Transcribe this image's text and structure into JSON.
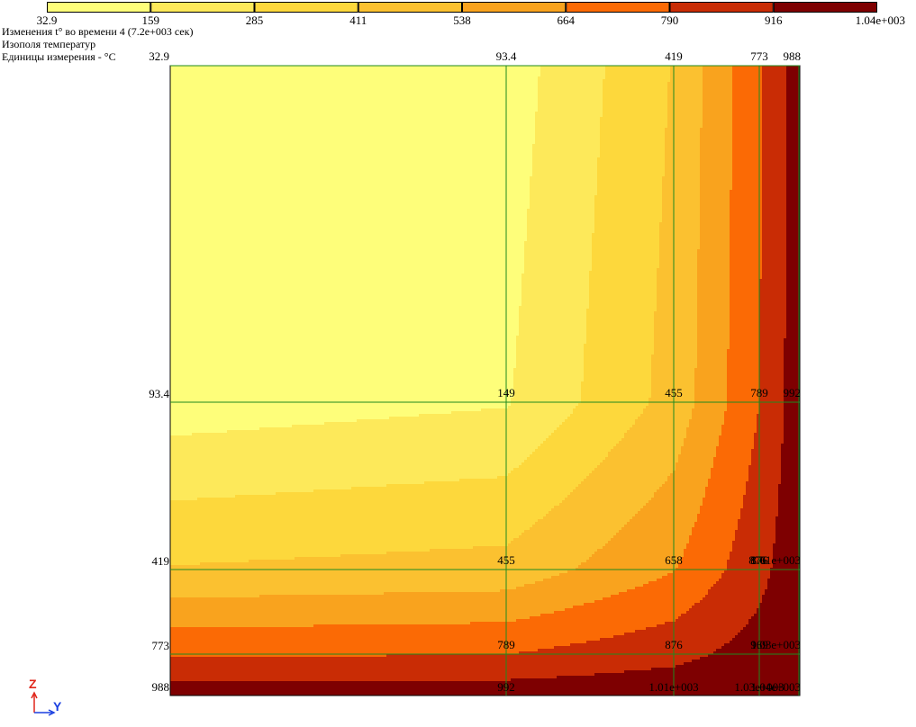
{
  "legend": {
    "boundaries": [
      "32.9",
      "159",
      "285",
      "411",
      "538",
      "664",
      "790",
      "916",
      "1.04e+003"
    ],
    "colors": [
      "#fefe7a",
      "#fde95a",
      "#fdd83c",
      "#fbc130",
      "#f9a31e",
      "#fb6a05",
      "#c92c05",
      "#7e0001"
    ]
  },
  "info": {
    "line1": "Изменения t° во времени 4 (7.2e+003 сек)",
    "line2": "Изополя температур",
    "line3": "Единицы измерения - °C"
  },
  "axis_indicator": {
    "z_label": "Z",
    "y_label": "Y",
    "z_color": "#e0261a",
    "y_color": "#1a3fe0"
  },
  "chart_data": {
    "type": "heatmap",
    "title": "Изополя температур",
    "subtitle": "Изменения t° во времени 4 (7.2e+003 сек)",
    "units": "°C",
    "grid_line_color": "#1f8a1f",
    "grid_labels": [
      [
        "32.9",
        "93.4",
        "419",
        "773",
        "988"
      ],
      [
        "93.4",
        "149",
        "455",
        "789",
        "992"
      ],
      [
        "419",
        "455",
        "658",
        "876",
        "1.01e+003"
      ],
      [
        "773",
        "789",
        "876",
        "969",
        "1.03e+003"
      ],
      [
        "988",
        "992",
        "1.01e+003",
        "1.03e+003",
        "1.04e+003"
      ]
    ],
    "extra_labels": [
      {
        "text": "876",
        "row": 2,
        "col": 3
      }
    ],
    "values": [
      [
        32.9,
        93.4,
        419,
        773,
        988
      ],
      [
        93.4,
        149,
        455,
        789,
        992
      ],
      [
        419,
        455,
        658,
        876,
        1010
      ],
      [
        773,
        789,
        876,
        969,
        1030
      ],
      [
        988,
        992,
        1010,
        1030,
        1040
      ]
    ],
    "levels": [
      32.9,
      159,
      285,
      411,
      538,
      664,
      790,
      916,
      1040
    ]
  }
}
